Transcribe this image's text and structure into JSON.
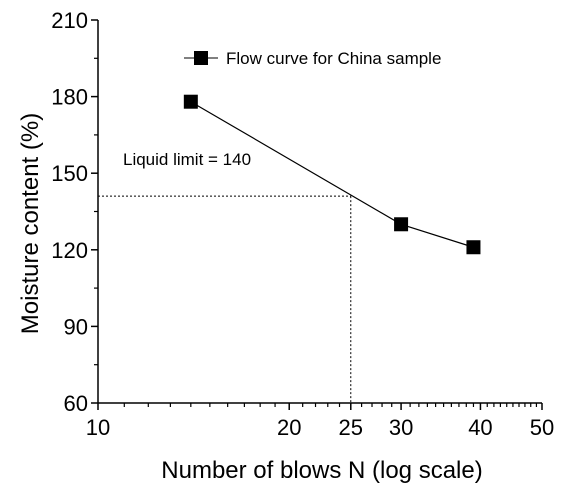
{
  "chart_data": {
    "type": "line",
    "xscale": "log",
    "xlabel": "Number of blows N (log scale)",
    "ylabel": "Moisture content (%)",
    "xlim": [
      10,
      50
    ],
    "ylim": [
      60,
      210
    ],
    "xticks": [
      10,
      20,
      25,
      30,
      40,
      50
    ],
    "yticks": [
      60,
      90,
      120,
      150,
      180,
      210
    ],
    "grid": false,
    "legend_position": "top-right",
    "series": [
      {
        "name": "Flow curve for China sample",
        "marker": "square",
        "color": "#000000",
        "x": [
          14,
          30,
          39
        ],
        "y": [
          178,
          130,
          121
        ]
      }
    ],
    "annotation": {
      "text": "Liquid limit = 140",
      "x": 25,
      "y": 141,
      "guide_color": "#000000",
      "guide_style": "dashed"
    }
  }
}
